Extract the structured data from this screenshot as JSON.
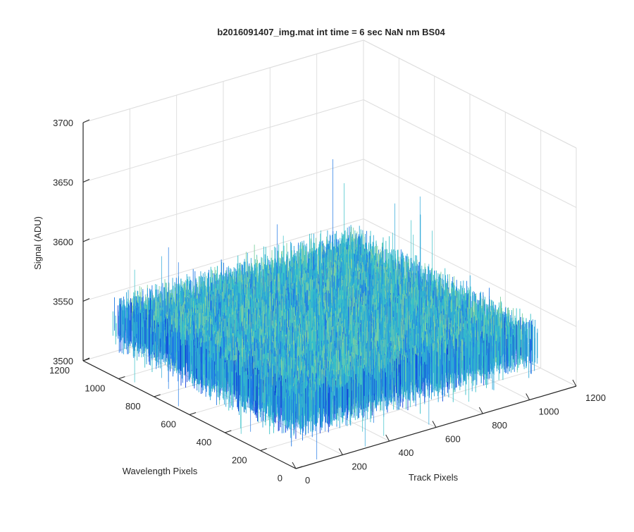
{
  "chart_data": {
    "type": "surface",
    "title": "b2016091407_img.mat int time = 6 sec  NaN nm BS04",
    "xlabel": "Track Pixels",
    "ylabel": "Wavelength Pixels",
    "zlabel": "Signal (ADU)",
    "xlim": [
      0,
      1200
    ],
    "ylim": [
      0,
      1200
    ],
    "zlim": [
      3500,
      3700
    ],
    "x_ticks": [
      0,
      200,
      400,
      600,
      800,
      1000,
      1200
    ],
    "y_ticks": [
      0,
      200,
      400,
      600,
      800,
      1000,
      1200
    ],
    "z_ticks": [
      3500,
      3550,
      3600,
      3650,
      3700
    ],
    "x_tick_labels": [
      "0",
      "200",
      "400",
      "600",
      "800",
      "1000",
      "1200"
    ],
    "y_tick_labels": [
      "0",
      "200",
      "400",
      "600",
      "800",
      "1000",
      "1200"
    ],
    "z_tick_labels": [
      "3500",
      "3550",
      "3600",
      "3650",
      "3700"
    ],
    "grid": true,
    "data_extent": {
      "x": [
        0,
        1024
      ],
      "y": [
        0,
        1024
      ]
    },
    "signal_mean": 3545,
    "signal_noise_range": [
      3510,
      3580
    ],
    "colormap": [
      "#0a3ad8",
      "#1f78e6",
      "#2aa6d8",
      "#38c0c8",
      "#7fd0a0"
    ]
  }
}
